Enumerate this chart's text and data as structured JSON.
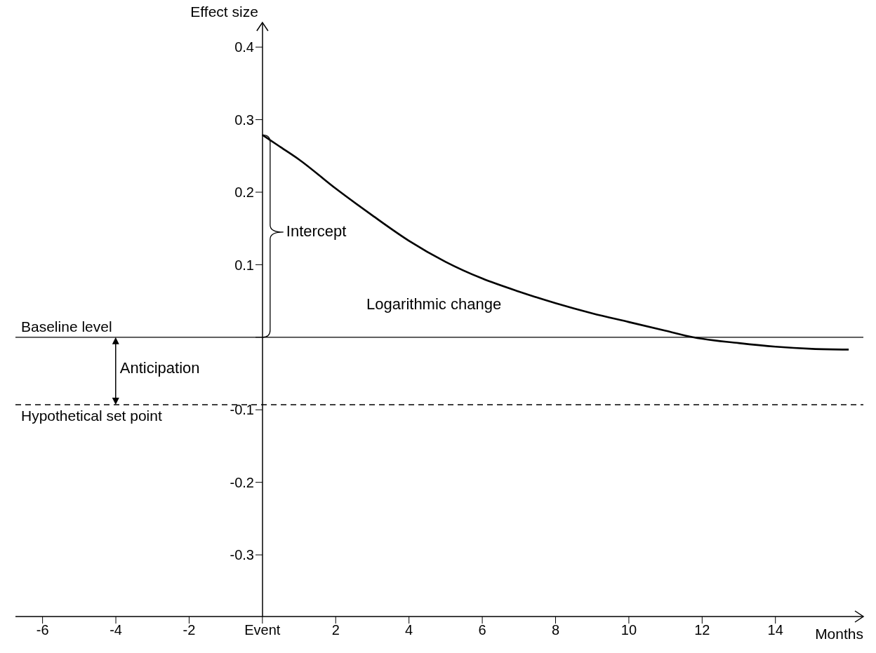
{
  "chart_data": {
    "type": "line",
    "xlabel": "Months",
    "ylabel": "Effect size",
    "x": [
      0,
      0.5,
      1,
      2,
      3,
      4,
      5,
      6,
      7,
      8,
      9,
      10,
      11,
      11.75,
      13,
      14,
      15,
      16
    ],
    "series": [
      {
        "color": "#000000",
        "values": [
          0.279,
          0.262,
          0.245,
          0.205,
          0.168,
          0.133,
          0.104,
          0.081,
          0.063,
          0.047,
          0.033,
          0.021,
          0.009,
          0,
          -0.008,
          -0.013,
          -0.016,
          -0.017
        ]
      }
    ],
    "xlim": [
      -6.74,
      16.4
    ],
    "ylim": [
      -0.385,
      0.434
    ],
    "xticks": [
      -6,
      -4,
      -2,
      {
        "value": 0,
        "label": "Event"
      },
      2,
      4,
      6,
      8,
      10,
      12,
      14
    ],
    "yticks": [
      -0.3,
      -0.2,
      -0.1,
      {
        "value": 0,
        "label": null
      },
      0.1,
      0.2,
      0.3,
      0.4
    ],
    "ref_lines": [
      {
        "axis": "y",
        "value": 0,
        "label": "Baseline level",
        "color": "#000000"
      },
      {
        "axis": "y",
        "value": -0.093,
        "label": "Hypothetical set point",
        "color": "#000000",
        "line_style": "dashed"
      }
    ],
    "annotations": [
      "Intercept",
      "Logarithmic change",
      "Anticipation"
    ],
    "grid": false,
    "legend": false,
    "marker": "none",
    "line_style": "solid"
  }
}
